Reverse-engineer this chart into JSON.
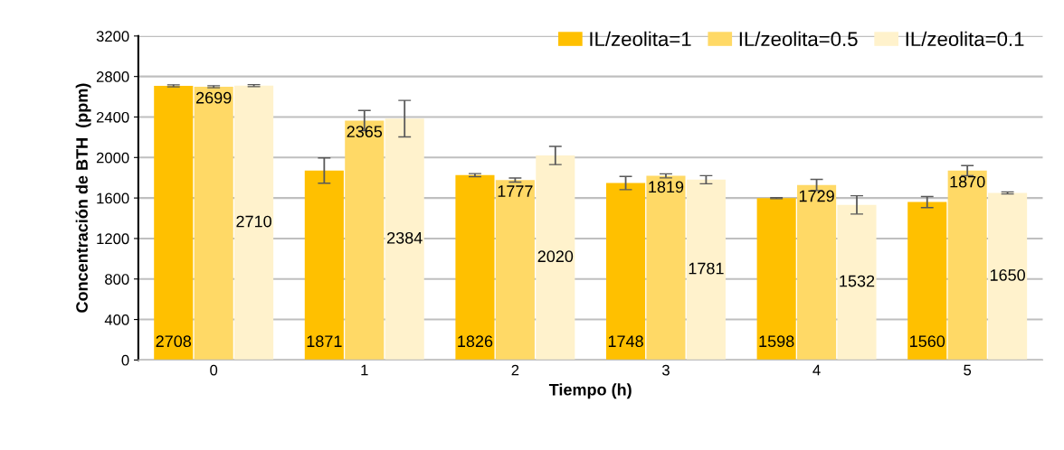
{
  "chart_data": {
    "type": "bar",
    "xlabel": "Tiempo (h)",
    "ylabel": "Concentración de BTH  (ppm)",
    "categories": [
      "0",
      "1",
      "2",
      "3",
      "4",
      "5"
    ],
    "series": [
      {
        "name": "IL/zeolita=1",
        "color": "#ffc000",
        "values": [
          2708,
          1871,
          1826,
          1748,
          1598,
          1560
        ],
        "errors": [
          10,
          125,
          15,
          65,
          5,
          55
        ]
      },
      {
        "name": "IL/zeolita=0.5",
        "color": "#ffd966",
        "values": [
          2699,
          2365,
          1777,
          1819,
          1729,
          1870
        ],
        "errors": [
          10,
          100,
          20,
          20,
          55,
          50
        ]
      },
      {
        "name": "IL/zeolita=0.1",
        "color": "#fff2cc",
        "values": [
          2710,
          2384,
          2020,
          1781,
          1532,
          1650
        ],
        "errors": [
          10,
          180,
          90,
          40,
          90,
          10
        ]
      }
    ],
    "ylim": [
      0,
      3200
    ],
    "yticks": [
      0,
      400,
      800,
      1200,
      1600,
      2000,
      2400,
      2800,
      3200
    ],
    "grid": "y",
    "legend": "top right",
    "data_labels": true
  }
}
